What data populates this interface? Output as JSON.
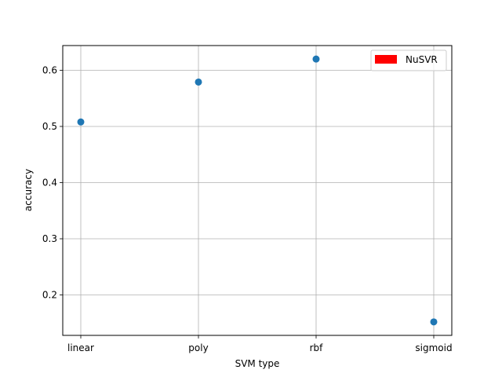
{
  "chart_data": {
    "type": "scatter",
    "title": "",
    "xlabel": "SVM type",
    "ylabel": "accuracy",
    "categories": [
      "linear",
      "poly",
      "rbf",
      "sigmoid"
    ],
    "series": [
      {
        "values": [
          0.508,
          0.579,
          0.62,
          0.152
        ],
        "color": "#1f77b4"
      }
    ],
    "ylim": [
      0.128,
      0.644
    ],
    "yticks": [
      "0.2",
      "0.3",
      "0.4",
      "0.5",
      "0.6"
    ],
    "grid": true,
    "legend": {
      "entries": [
        {
          "label": "NuSVR",
          "color": "#ff0000"
        }
      ],
      "placement": "top-right"
    }
  }
}
